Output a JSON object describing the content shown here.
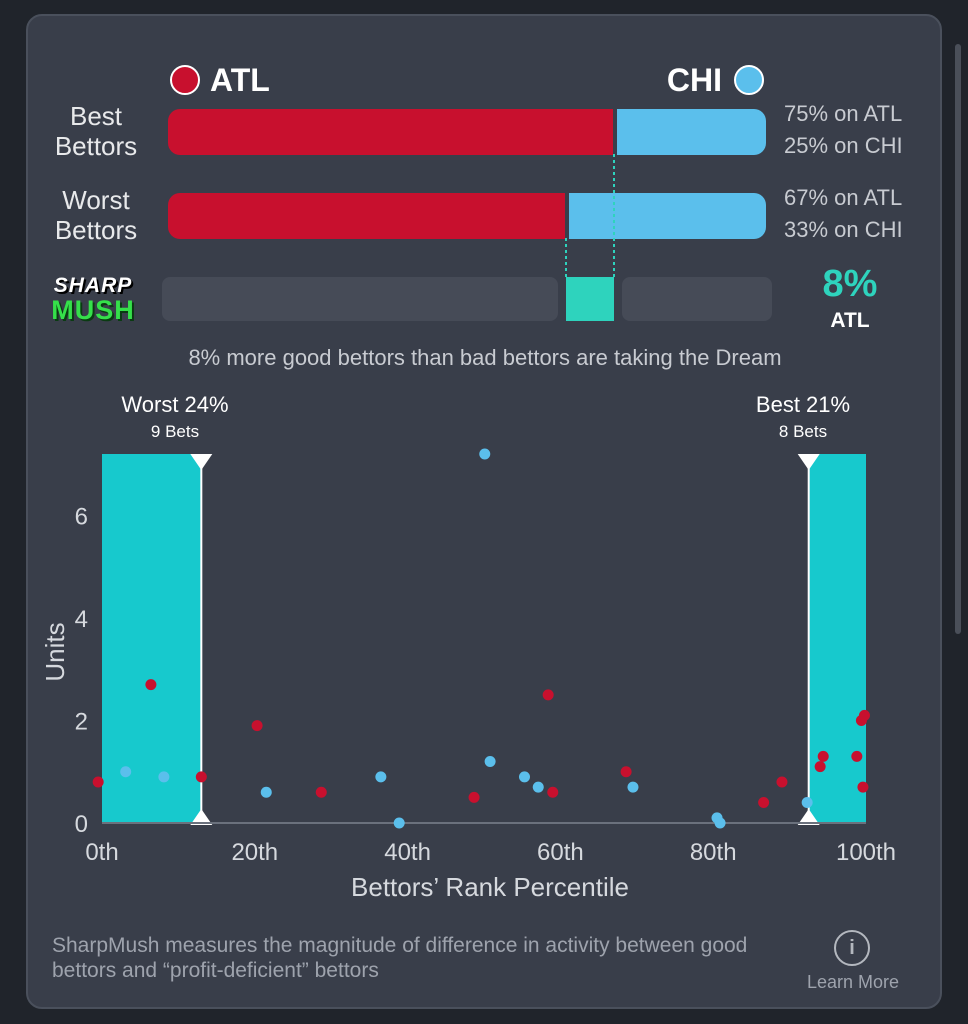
{
  "teams": {
    "left": {
      "name": "ATL",
      "color": "#c8102e"
    },
    "right": {
      "name": "CHI",
      "color": "#5bbfec"
    }
  },
  "rows": [
    {
      "label_line1": "Best",
      "label_line2": "Bettors",
      "left_pct": 75,
      "right_pct": 25,
      "left_text": "75% on ATL",
      "right_text": "25% on CHI"
    },
    {
      "label_line1": "Worst",
      "label_line2": "Bettors",
      "left_pct": 67,
      "right_pct": 33,
      "left_text": "67% on ATL",
      "right_text": "33% on CHI"
    }
  ],
  "logo": {
    "line1": "SHARP",
    "line2": "MUSH"
  },
  "sharp": {
    "value": "8%",
    "team": "ATL",
    "accent": "#2ed3bd"
  },
  "summary": "8% more good bettors than bad bettors are taking the Dream",
  "chart_data": {
    "type": "scatter",
    "xlabel": "Bettors’ Rank Percentile",
    "ylabel": "Units",
    "xlim": [
      0,
      100
    ],
    "ylim": [
      0,
      7.2
    ],
    "x_ticks": [
      0,
      20,
      40,
      60,
      80,
      100
    ],
    "x_tick_labels": [
      "0th",
      "20th",
      "40th",
      "60th",
      "80th",
      "100th"
    ],
    "y_ticks": [
      0,
      2,
      4,
      6
    ],
    "grid": false,
    "regions": [
      {
        "name": "worst",
        "label": "Worst 24%",
        "sublabel": "9 Bets",
        "from": 0,
        "to": 13
      },
      {
        "name": "best",
        "label": "Best 21%",
        "sublabel": "8 Bets",
        "from": 92.5,
        "to": 100
      }
    ],
    "series": [
      {
        "name": "ATL",
        "color": "#c8102e",
        "points": [
          [
            -0.5,
            0.8
          ],
          [
            6.4,
            2.7
          ],
          [
            13.0,
            0.9
          ],
          [
            20.3,
            1.9
          ],
          [
            28.7,
            0.6
          ],
          [
            48.7,
            0.5
          ],
          [
            58.4,
            2.5
          ],
          [
            59.0,
            0.6
          ],
          [
            68.6,
            1.0
          ],
          [
            86.6,
            0.4
          ],
          [
            89.0,
            0.8
          ],
          [
            94.0,
            1.1
          ],
          [
            94.4,
            1.3
          ],
          [
            98.8,
            1.3
          ],
          [
            99.4,
            2.0
          ],
          [
            99.8,
            2.1
          ],
          [
            99.6,
            0.7
          ]
        ]
      },
      {
        "name": "CHI",
        "color": "#5bbfec",
        "points": [
          [
            3.1,
            1.0
          ],
          [
            8.1,
            0.9
          ],
          [
            21.5,
            0.6
          ],
          [
            36.5,
            0.9
          ],
          [
            38.9,
            0.0
          ],
          [
            50.1,
            7.2
          ],
          [
            50.8,
            1.2
          ],
          [
            55.3,
            0.9
          ],
          [
            57.1,
            0.7
          ],
          [
            69.5,
            0.7
          ],
          [
            80.5,
            0.1
          ],
          [
            80.9,
            0.0
          ],
          [
            92.3,
            0.4
          ]
        ]
      }
    ]
  },
  "footer": {
    "text": "SharpMush measures the magnitude of difference in activity between good bettors and “profit-deficient” bettors",
    "learn_more": "Learn More"
  }
}
